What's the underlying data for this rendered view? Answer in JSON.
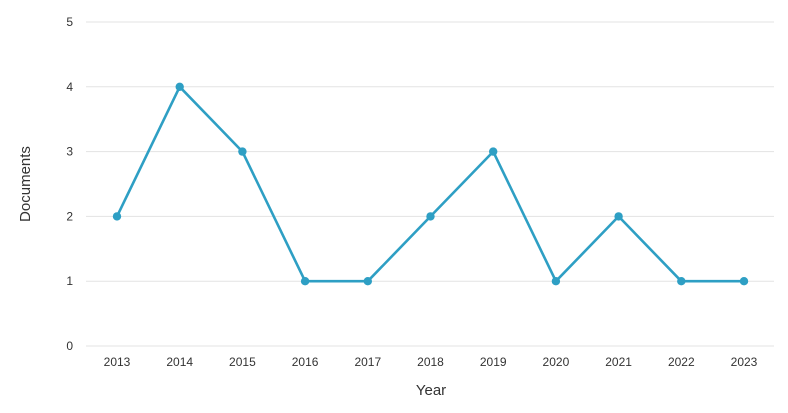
{
  "chart_data": {
    "type": "line",
    "title": "",
    "xlabel": "Year",
    "ylabel": "Documents",
    "categories": [
      "2013",
      "2014",
      "2015",
      "2016",
      "2017",
      "2018",
      "2019",
      "2020",
      "2021",
      "2022",
      "2023"
    ],
    "series": [
      {
        "values": [
          2,
          4,
          3,
          1,
          1,
          2,
          3,
          1,
          2,
          1,
          1
        ],
        "color": "#2e9fc4"
      }
    ],
    "ylim": [
      0,
      5
    ],
    "yticks": [
      0,
      1,
      2,
      3,
      4,
      5
    ],
    "grid": true,
    "legend": "none"
  }
}
